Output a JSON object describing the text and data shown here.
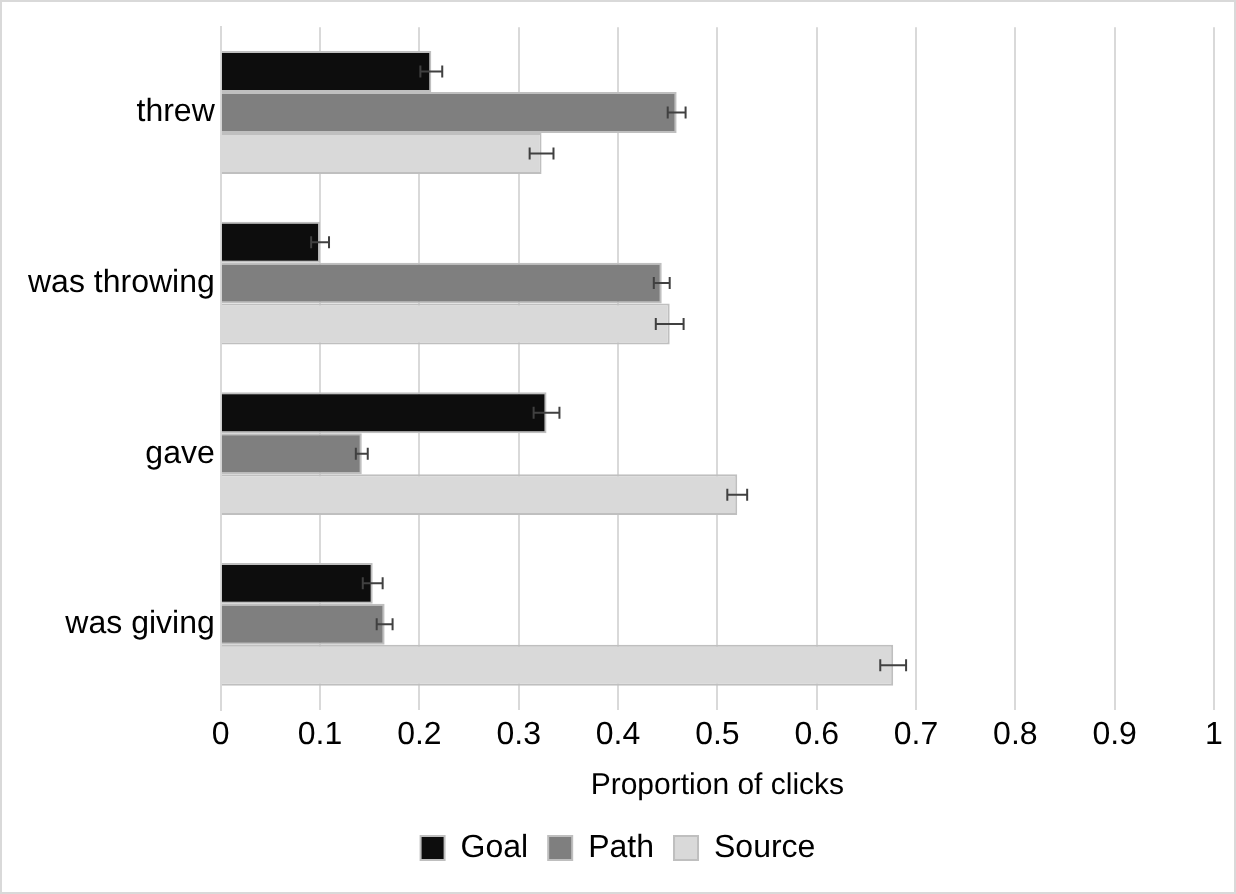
{
  "chart_data": {
    "type": "bar",
    "orientation": "horizontal",
    "categories": [
      "threw",
      "was throwing",
      "gave",
      "was giving"
    ],
    "xlabel": "Proportion of clicks",
    "xlim": [
      0,
      1
    ],
    "xticks": [
      0,
      0.1,
      0.2,
      0.3,
      0.4,
      0.5,
      0.6,
      0.7,
      0.8,
      0.9,
      1
    ],
    "grid": "x",
    "legend": "bottom",
    "series": [
      {
        "name": "Goal",
        "color": "#0d0d0d",
        "values": [
          0.212,
          0.1,
          0.328,
          0.153
        ],
        "errors": [
          0.011,
          0.009,
          0.013,
          0.01
        ]
      },
      {
        "name": "Path",
        "color": "#7f7f7f",
        "values": [
          0.459,
          0.444,
          0.142,
          0.165
        ],
        "errors": [
          0.009,
          0.008,
          0.006,
          0.008
        ]
      },
      {
        "name": "Source",
        "color": "#d9d9d9",
        "values": [
          0.323,
          0.452,
          0.52,
          0.677
        ],
        "errors": [
          0.012,
          0.014,
          0.01,
          0.013
        ]
      }
    ]
  }
}
